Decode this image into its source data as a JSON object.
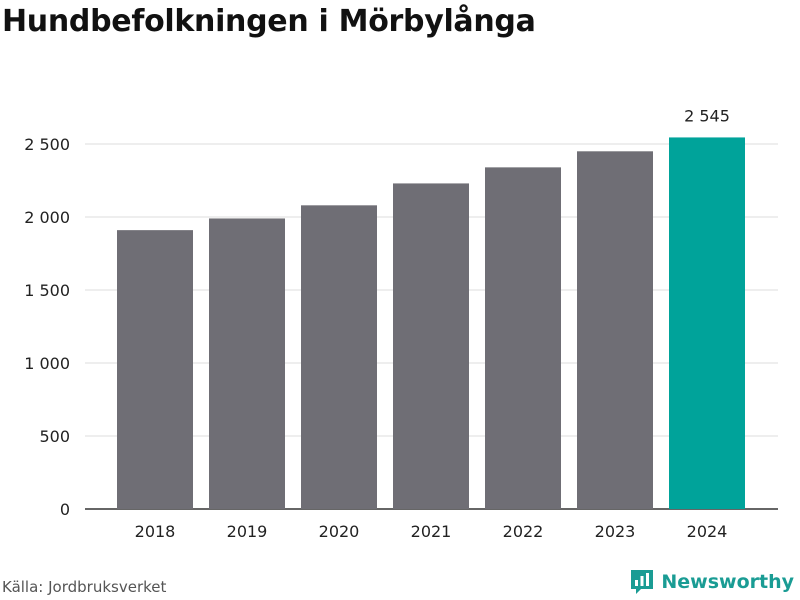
{
  "title": "Hundbefolkningen i Mörbylånga",
  "source": "Källa: Jordbruksverket",
  "brand": {
    "name": "Newsworthy",
    "icon": "newsworthy-logo-icon",
    "color": "#1a9c94"
  },
  "colors": {
    "bar": "#6f6e75",
    "highlight": "#00a39a",
    "grid": "#dddddd",
    "axis": "#333333"
  },
  "chart_data": {
    "type": "bar",
    "title": "Hundbefolkningen i Mörbylånga",
    "categories": [
      "2018",
      "2019",
      "2020",
      "2021",
      "2022",
      "2023",
      "2024"
    ],
    "values": [
      1910,
      1990,
      2080,
      2230,
      2340,
      2450,
      2545
    ],
    "highlight_index": 6,
    "data_labels": [
      {
        "index": 6,
        "text": "2 545"
      }
    ],
    "ylim": [
      0,
      2500
    ],
    "yticks": [
      0,
      500,
      1000,
      1500,
      2000,
      2500
    ],
    "ytick_labels": [
      "0",
      "500",
      "1 000",
      "1 500",
      "2 000",
      "2 500"
    ],
    "xlabel": "",
    "ylabel": "",
    "grid": true,
    "legend": "none"
  }
}
